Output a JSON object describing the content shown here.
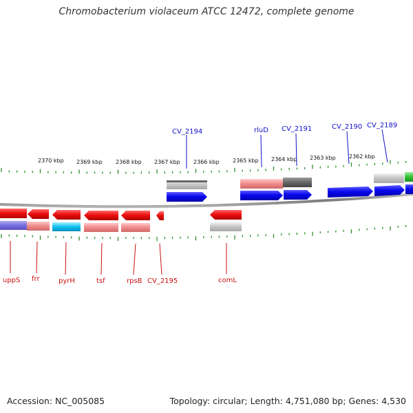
{
  "title": "Chromobacterium violaceum ATCC 12472, complete genome",
  "footer": {
    "accession": "Accession: NC_005085",
    "summary": "Topology: circular; Length: 4,751,080 bp; Genes: 4,530"
  },
  "colors": {
    "tick": "#2e8b2e",
    "plus_gene": "#0a0aee",
    "minus_gene": "#ee1111",
    "plus_label": "#1010c8",
    "minus_label": "#c81010",
    "backbone": "#777777"
  },
  "scale": {
    "unit": "kbp",
    "ticks": [
      "2370 kbp",
      "2369 kbp",
      "2368 kbp",
      "2367 kbp",
      "2366 kbp",
      "2365 kbp",
      "2364 kbp",
      "2363 kbp",
      "2362 kbp"
    ]
  },
  "plus_strand_labels": [
    "CV_2194",
    "rluD",
    "CV_2191",
    "CV_2190",
    "CV_2189"
  ],
  "minus_strand_labels": [
    "uppS",
    "frr",
    "pyrH",
    "tsf",
    "rpsB",
    "CV_2195",
    "comL"
  ]
}
